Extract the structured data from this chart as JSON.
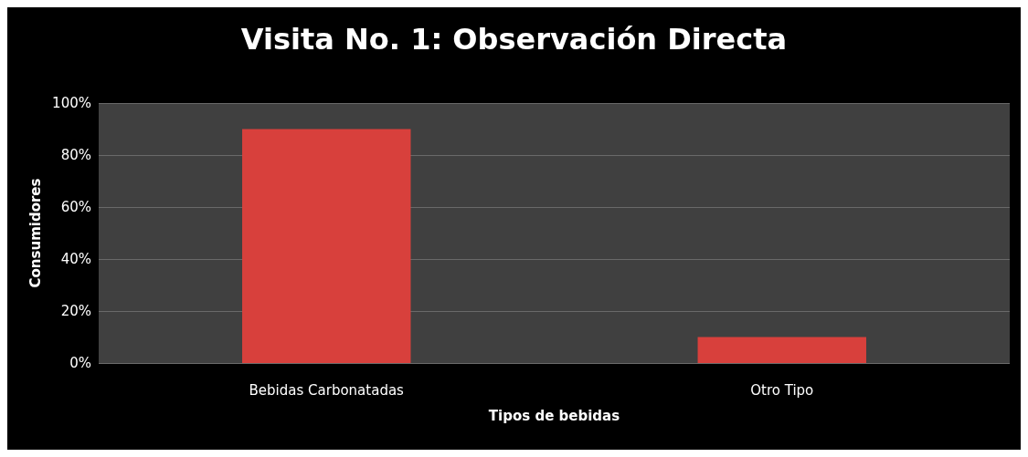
{
  "chart_data": {
    "type": "bar",
    "title": "Visita No. 1: Observación Directa",
    "xlabel": "Tipos de bebidas",
    "ylabel": "Consumidores",
    "categories": [
      "Bebidas Carbonatadas",
      "Otro Tipo"
    ],
    "values": [
      90,
      10
    ],
    "color": "#d8403c",
    "ylim": [
      0,
      100
    ],
    "yticks": [
      {
        "value": 0,
        "label": "0%"
      },
      {
        "value": 20,
        "label": "20%"
      },
      {
        "value": 40,
        "label": "40%"
      },
      {
        "value": 60,
        "label": "60%"
      },
      {
        "value": 80,
        "label": "80%"
      },
      {
        "value": 100,
        "label": "100%"
      }
    ],
    "grid": "y"
  }
}
